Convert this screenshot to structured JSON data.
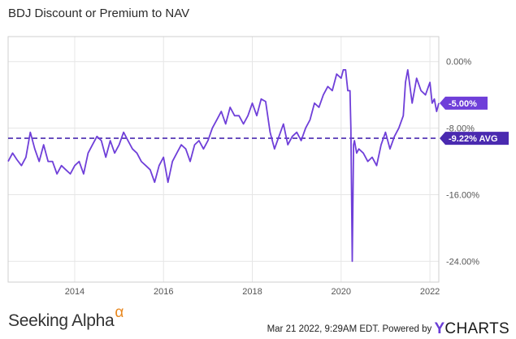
{
  "chart_data": {
    "type": "line",
    "title": "BDJ Discount or Premium to NAV",
    "xlabel": "",
    "ylabel": "",
    "x_ticks": [
      "2014",
      "2016",
      "2018",
      "2020",
      "2022"
    ],
    "y_ticks": [
      "0.00%",
      "-8.00%",
      "-16.00%",
      "-24.00%"
    ],
    "xlim": [
      2012.5,
      2022.2
    ],
    "ylim": [
      -26.5,
      3
    ],
    "grid": true,
    "series": [
      {
        "color": "#6f3fd9",
        "x": [
          2012.5,
          2012.6,
          2012.7,
          2012.8,
          2012.9,
          2013.0,
          2013.1,
          2013.2,
          2013.3,
          2013.4,
          2013.5,
          2013.6,
          2013.7,
          2013.8,
          2013.9,
          2014.0,
          2014.1,
          2014.2,
          2014.3,
          2014.4,
          2014.5,
          2014.6,
          2014.7,
          2014.8,
          2014.9,
          2015.0,
          2015.1,
          2015.2,
          2015.3,
          2015.4,
          2015.5,
          2015.6,
          2015.7,
          2015.8,
          2015.9,
          2016.0,
          2016.1,
          2016.2,
          2016.3,
          2016.4,
          2016.5,
          2016.6,
          2016.7,
          2016.8,
          2016.9,
          2017.0,
          2017.1,
          2017.2,
          2017.3,
          2017.4,
          2017.5,
          2017.6,
          2017.7,
          2017.8,
          2017.9,
          2018.0,
          2018.1,
          2018.2,
          2018.3,
          2018.4,
          2018.5,
          2018.6,
          2018.7,
          2018.8,
          2018.9,
          2019.0,
          2019.1,
          2019.2,
          2019.3,
          2019.4,
          2019.5,
          2019.6,
          2019.7,
          2019.8,
          2019.9,
          2020.0,
          2020.05,
          2020.1,
          2020.15,
          2020.2,
          2020.22,
          2020.25,
          2020.28,
          2020.3,
          2020.35,
          2020.4,
          2020.5,
          2020.6,
          2020.7,
          2020.8,
          2020.9,
          2021.0,
          2021.1,
          2021.2,
          2021.3,
          2021.4,
          2021.45,
          2021.5,
          2021.6,
          2021.7,
          2021.8,
          2021.9,
          2022.0,
          2022.05,
          2022.1,
          2022.15,
          2022.2
        ],
        "values": [
          -12.0,
          -11.0,
          -11.8,
          -12.5,
          -11.5,
          -8.5,
          -10.5,
          -12.0,
          -10.0,
          -12.0,
          -12.0,
          -13.5,
          -12.5,
          -13.0,
          -13.5,
          -12.5,
          -12.0,
          -13.5,
          -11.0,
          -10.0,
          -9.0,
          -9.5,
          -11.5,
          -9.5,
          -11.0,
          -10.0,
          -8.5,
          -9.5,
          -10.5,
          -11.0,
          -12.0,
          -12.5,
          -13.0,
          -14.5,
          -12.5,
          -11.5,
          -14.5,
          -12.0,
          -11.0,
          -10.0,
          -10.5,
          -12.0,
          -10.0,
          -9.5,
          -10.5,
          -9.5,
          -8.0,
          -7.0,
          -6.0,
          -7.5,
          -5.5,
          -6.5,
          -6.5,
          -7.5,
          -6.5,
          -5.0,
          -6.5,
          -4.5,
          -4.8,
          -8.5,
          -10.5,
          -9.0,
          -7.5,
          -10.0,
          -9.0,
          -8.5,
          -9.5,
          -8.0,
          -7.0,
          -5.0,
          -5.5,
          -4.0,
          -3.0,
          -3.5,
          -1.5,
          -2.0,
          -1.0,
          -1.0,
          -3.5,
          -3.5,
          -8.0,
          -24.0,
          -10.0,
          -9.5,
          -11.0,
          -10.5,
          -11.0,
          -12.0,
          -11.5,
          -12.5,
          -10.0,
          -8.5,
          -10.5,
          -9.0,
          -8.0,
          -6.5,
          -2.5,
          -1.0,
          -5.0,
          -2.0,
          -3.5,
          -4.0,
          -2.5,
          -5.0,
          -4.5,
          -6.0,
          -5.0
        ]
      }
    ],
    "reference_line": {
      "value": -9.22,
      "label": "-9.22% AVG",
      "color": "#4a2ab0"
    },
    "last_value_label": {
      "value": -5.0,
      "label": "-5.00%",
      "color": "#6f3fd9"
    }
  },
  "footer": {
    "brand": "Seeking Alpha",
    "brand_symbol": "α",
    "timestamp": "Mar 21 2022, 9:29AM EDT.",
    "powered_by": "Powered by",
    "ycharts_y": "Y",
    "ycharts_rest": "CHARTS"
  }
}
